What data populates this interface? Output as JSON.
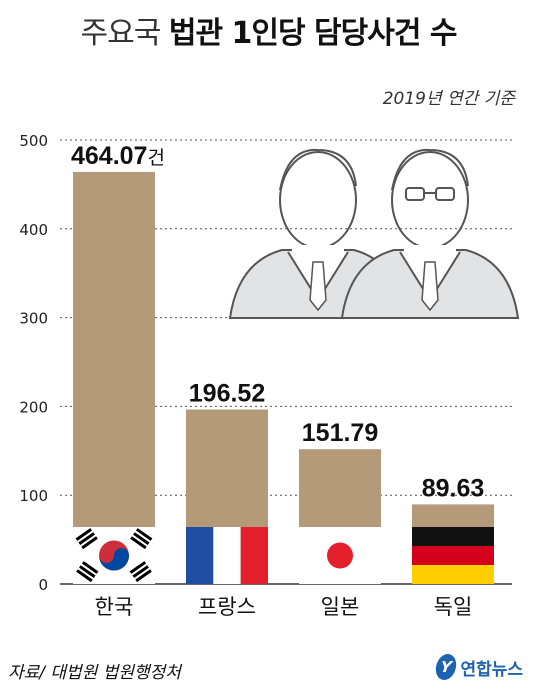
{
  "title_light": "주요국",
  "title_bold": "법관 1인당 담당사건 수",
  "subtitle": "2019년 연간 기준",
  "source": "자료/ 대법원 법원행정처",
  "logo_text": "연합뉴스",
  "logo_mark": "Y",
  "unit_suffix": "건",
  "colors": {
    "bar": "#b49a78",
    "grid": "#555555",
    "background": "#ffffff"
  },
  "chart_data": {
    "type": "bar",
    "categories": [
      "한국",
      "프랑스",
      "일본",
      "독일"
    ],
    "values": [
      464.07,
      196.52,
      151.79,
      89.63
    ],
    "value_labels": [
      "464.07",
      "196.52",
      "151.79",
      "89.63"
    ],
    "yticks": [
      0,
      100,
      200,
      300,
      400,
      500
    ],
    "ylim": [
      0,
      500
    ],
    "grid": true,
    "flags": [
      "korea",
      "france",
      "japan",
      "germany"
    ]
  }
}
